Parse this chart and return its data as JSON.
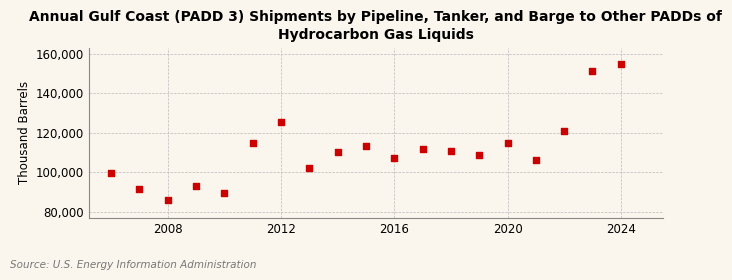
{
  "title": "Annual Gulf Coast (PADD 3) Shipments by Pipeline, Tanker, and Barge to Other PADDs of\nHydrocarbon Gas Liquids",
  "ylabel": "Thousand Barrels",
  "source": "Source: U.S. Energy Information Administration",
  "background_color": "#faf6ed",
  "marker_color": "#cc0000",
  "years": [
    2006,
    2007,
    2008,
    2009,
    2010,
    2011,
    2012,
    2013,
    2014,
    2015,
    2016,
    2017,
    2018,
    2019,
    2020,
    2021,
    2022,
    2023,
    2024
  ],
  "values": [
    99500,
    91500,
    86000,
    93000,
    89500,
    115000,
    125500,
    102000,
    110500,
    113500,
    107500,
    112000,
    111000,
    109000,
    115000,
    106500,
    121000,
    151000,
    155000
  ],
  "ylim": [
    77000,
    163000
  ],
  "yticks": [
    80000,
    100000,
    120000,
    140000,
    160000
  ],
  "xticks": [
    2008,
    2012,
    2016,
    2020,
    2024
  ],
  "xlim": [
    2005.2,
    2025.5
  ],
  "title_fontsize": 10,
  "axis_fontsize": 8.5,
  "source_fontsize": 7.5
}
